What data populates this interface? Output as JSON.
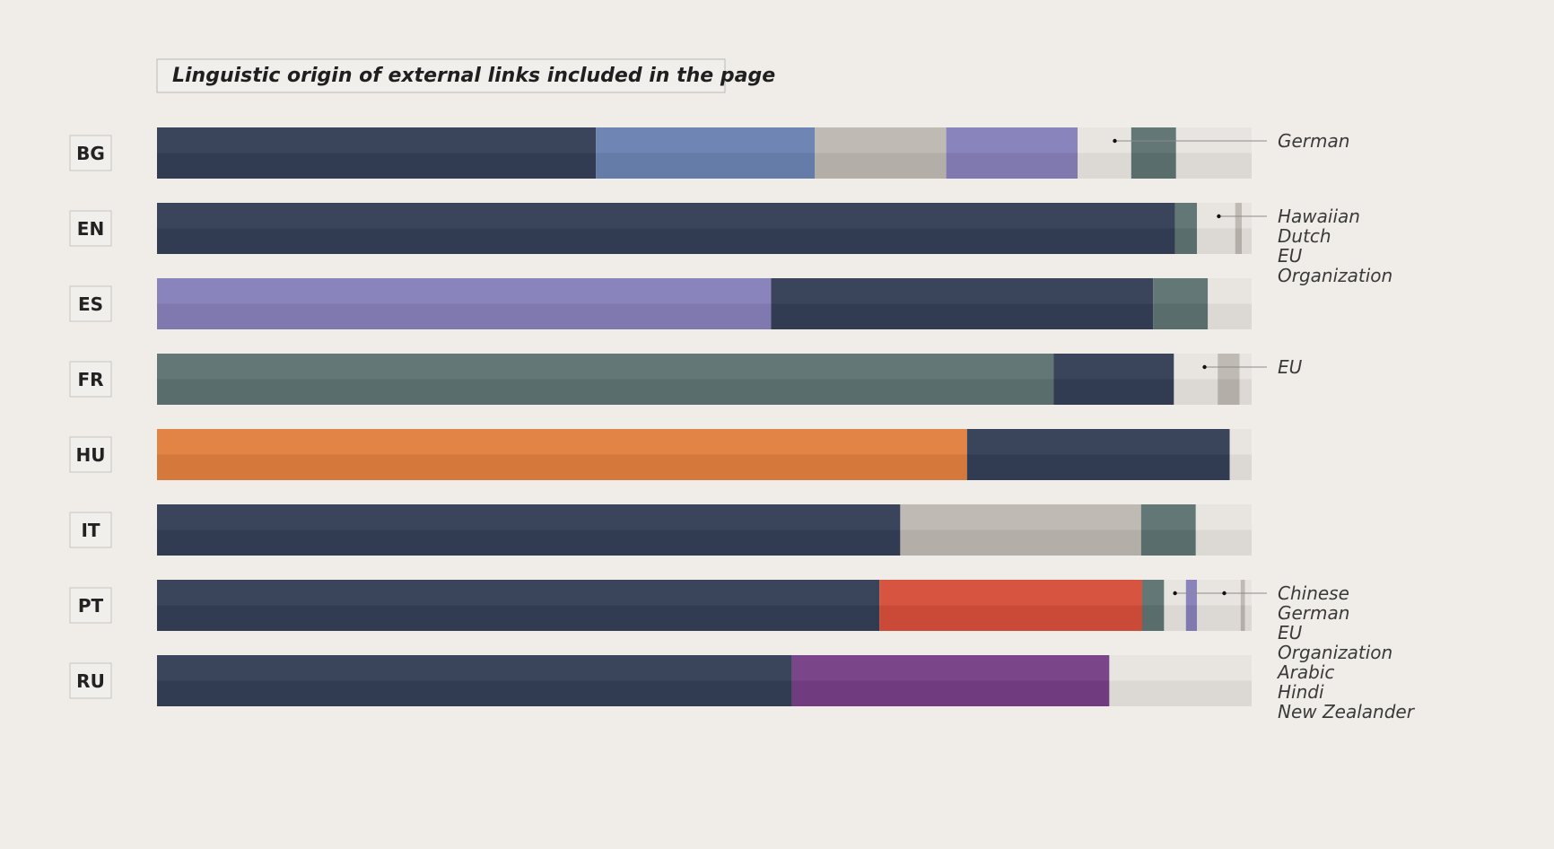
{
  "chart_data": {
    "type": "bar",
    "stacked": true,
    "orientation": "horizontal",
    "title": "Linguistic origin of external links included in the page",
    "categories": [
      "BG",
      "EN",
      "ES",
      "FR",
      "HU",
      "IT",
      "PT",
      "RU"
    ],
    "xlim": [
      0,
      100
    ],
    "grid": false,
    "legend": "none",
    "rows": [
      {
        "label": "BG",
        "segments": [
          {
            "value": 40.1,
            "color": "#343f56"
          },
          {
            "value": 20.0,
            "color": "#6b83b2"
          },
          {
            "value": 12.0,
            "color": "#bdb9b2"
          },
          {
            "value": 12.0,
            "color": "#8680ba"
          },
          {
            "value": 4.9,
            "color": "#e8e5e1"
          },
          {
            "value": 4.1,
            "color": "#5e7373"
          },
          {
            "value": 6.9,
            "color": "#e8e5e1"
          }
        ]
      },
      {
        "label": "EN",
        "segments": [
          {
            "value": 93.0,
            "color": "#343f56"
          },
          {
            "value": 2.0,
            "color": "#5e7373"
          },
          {
            "value": 3.5,
            "color": "#e8e5e1"
          },
          {
            "value": 0.6,
            "color": "#bdb9b2"
          },
          {
            "value": 0.9,
            "color": "#e8e5e1"
          }
        ]
      },
      {
        "label": "ES",
        "segments": [
          {
            "value": 56.1,
            "color": "#8680ba"
          },
          {
            "value": 34.9,
            "color": "#343f56"
          },
          {
            "value": 5.0,
            "color": "#5e7373"
          },
          {
            "value": 4.0,
            "color": "#e8e5e1"
          }
        ]
      },
      {
        "label": "FR",
        "segments": [
          {
            "value": 81.9,
            "color": "#5e7373"
          },
          {
            "value": 11.0,
            "color": "#343f56"
          },
          {
            "value": 4.0,
            "color": "#e8e5e1"
          },
          {
            "value": 2.0,
            "color": "#bdb9b2"
          },
          {
            "value": 1.1,
            "color": "#e8e5e1"
          }
        ]
      },
      {
        "label": "HU",
        "segments": [
          {
            "value": 74.0,
            "color": "#e0803f"
          },
          {
            "value": 24.0,
            "color": "#343f56"
          },
          {
            "value": 2.0,
            "color": "#e8e5e1"
          }
        ]
      },
      {
        "label": "IT",
        "segments": [
          {
            "value": 67.9,
            "color": "#343f56"
          },
          {
            "value": 22.0,
            "color": "#bdb9b2"
          },
          {
            "value": 5.0,
            "color": "#5e7373"
          },
          {
            "value": 5.1,
            "color": "#e8e5e1"
          }
        ]
      },
      {
        "label": "PT",
        "segments": [
          {
            "value": 66.0,
            "color": "#343f56"
          },
          {
            "value": 24.0,
            "color": "#d64f3a"
          },
          {
            "value": 2.0,
            "color": "#5e7373"
          },
          {
            "value": 2.0,
            "color": "#e8e5e1"
          },
          {
            "value": 1.0,
            "color": "#8680ba"
          },
          {
            "value": 4.0,
            "color": "#e8e5e1"
          },
          {
            "value": 0.4,
            "color": "#bdb9b2"
          },
          {
            "value": 0.6,
            "color": "#e8e5e1"
          }
        ]
      },
      {
        "label": "RU",
        "segments": [
          {
            "value": 58.0,
            "color": "#343f56"
          },
          {
            "value": 29.0,
            "color": "#773f86"
          },
          {
            "value": 13.0,
            "color": "#e8e5e1"
          }
        ]
      }
    ],
    "annotations": [
      {
        "row": "BG",
        "at": 87.5,
        "labels": [
          "German"
        ]
      },
      {
        "row": "EN",
        "at": 97.0,
        "labels": [
          "Hawaiian",
          "Dutch",
          "EU",
          "Organization"
        ]
      },
      {
        "row": "FR",
        "at": 95.7,
        "labels": [
          "EU"
        ]
      },
      {
        "row": "PT",
        "at": 93.0,
        "at2": 97.5,
        "labels": [
          "Chinese",
          "German",
          "EU",
          "Organization",
          "Arabic",
          "Hindi",
          "New Zealander"
        ]
      }
    ]
  }
}
